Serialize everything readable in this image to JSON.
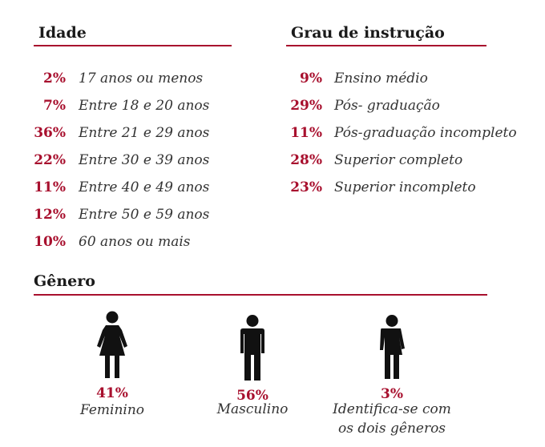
{
  "idade": {
    "title": "Idade",
    "items": [
      {
        "pct": "2%",
        "label": "17 anos ou menos"
      },
      {
        "pct": "7%",
        "label": "Entre 18 e 20 anos"
      },
      {
        "pct": "36%",
        "label": "Entre 21 e 29 anos"
      },
      {
        "pct": "22%",
        "label": "Entre 30 e 39 anos"
      },
      {
        "pct": "11%",
        "label": "Entre 40 e 49 anos"
      },
      {
        "pct": "12%",
        "label": "Entre 50 e 59 anos"
      },
      {
        "pct": "10%",
        "label": "60 anos ou mais"
      }
    ]
  },
  "grau": {
    "title": "Grau de instrução",
    "items": [
      {
        "pct": "9%",
        "label": "Ensino médio"
      },
      {
        "pct": "29%",
        "label": "Pós- graduação"
      },
      {
        "pct": "11%",
        "label": "Pós-graduação incompleto"
      },
      {
        "pct": "28%",
        "label": "Superior completo"
      },
      {
        "pct": "23%",
        "label": "Superior incompleto"
      }
    ]
  },
  "genero": {
    "title": "Gênero",
    "items": [
      {
        "pct": "41%",
        "label": "Feminino",
        "icon": "female-icon"
      },
      {
        "pct": "56%",
        "label": "Masculino",
        "icon": "male-icon"
      },
      {
        "pct": "3%",
        "label": "Identifica-se com\nos dois gêneros",
        "icon": "both-genders-icon"
      }
    ]
  },
  "colors": {
    "accent": "#a8102e",
    "text": "#333333",
    "heading": "#1a1a1a"
  }
}
